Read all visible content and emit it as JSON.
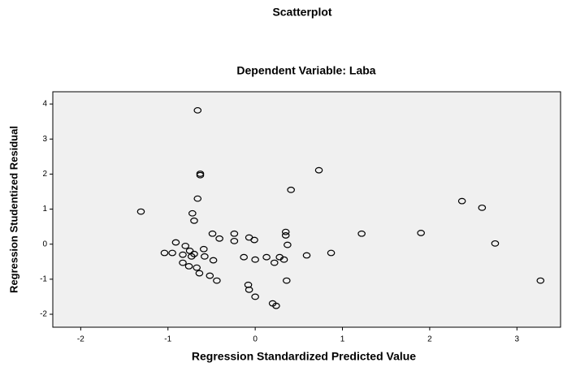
{
  "chart_data": {
    "type": "scatter",
    "title": "Scatterplot",
    "subtitle": "Dependent Variable: Laba",
    "x_label": "Regression Standardized Predicted Value",
    "y_label": "Regression Studentized Residual",
    "color": "#000000",
    "background": "#f0f0f0",
    "xlim": [
      -2.32,
      3.5
    ],
    "ylim": [
      -2.37,
      4.35
    ],
    "xticks": [
      -2,
      -1,
      0,
      1,
      2,
      3
    ],
    "yticks": [
      -2,
      -1,
      0,
      1,
      2,
      3,
      4
    ],
    "x": [
      -0.66,
      -0.63,
      -0.63,
      0.73,
      0.41,
      -0.66,
      2.37,
      2.6,
      -1.31,
      -0.72,
      -0.7,
      -0.49,
      -0.24,
      0.35,
      0.35,
      1.22,
      1.9,
      2.75,
      -0.41,
      -0.24,
      -0.07,
      -0.01,
      0.37,
      -0.91,
      -0.8,
      -0.59,
      -0.75,
      -1.04,
      -0.95,
      -0.83,
      -0.7,
      -0.58,
      -0.73,
      -0.48,
      -0.13,
      0.0,
      0.13,
      0.28,
      0.33,
      0.22,
      0.59,
      0.87,
      -0.83,
      -0.76,
      -0.67,
      -0.64,
      -0.52,
      -0.44,
      0.36,
      3.27,
      -0.08,
      -0.07,
      0.0,
      0.2,
      0.24
    ],
    "values": [
      3.82,
      2.01,
      1.97,
      2.11,
      1.55,
      1.3,
      1.23,
      1.04,
      0.93,
      0.88,
      0.67,
      0.3,
      0.3,
      0.35,
      0.25,
      0.3,
      0.32,
      0.02,
      0.16,
      0.09,
      0.19,
      0.12,
      -0.02,
      0.05,
      -0.05,
      -0.14,
      -0.19,
      -0.25,
      -0.25,
      -0.3,
      -0.28,
      -0.35,
      -0.35,
      -0.46,
      -0.37,
      -0.44,
      -0.37,
      -0.37,
      -0.44,
      -0.53,
      -0.32,
      -0.25,
      -0.53,
      -0.63,
      -0.67,
      -0.83,
      -0.9,
      -1.04,
      -1.04,
      -1.04,
      -1.16,
      -1.3,
      -1.5,
      -1.69,
      -1.76
    ]
  }
}
